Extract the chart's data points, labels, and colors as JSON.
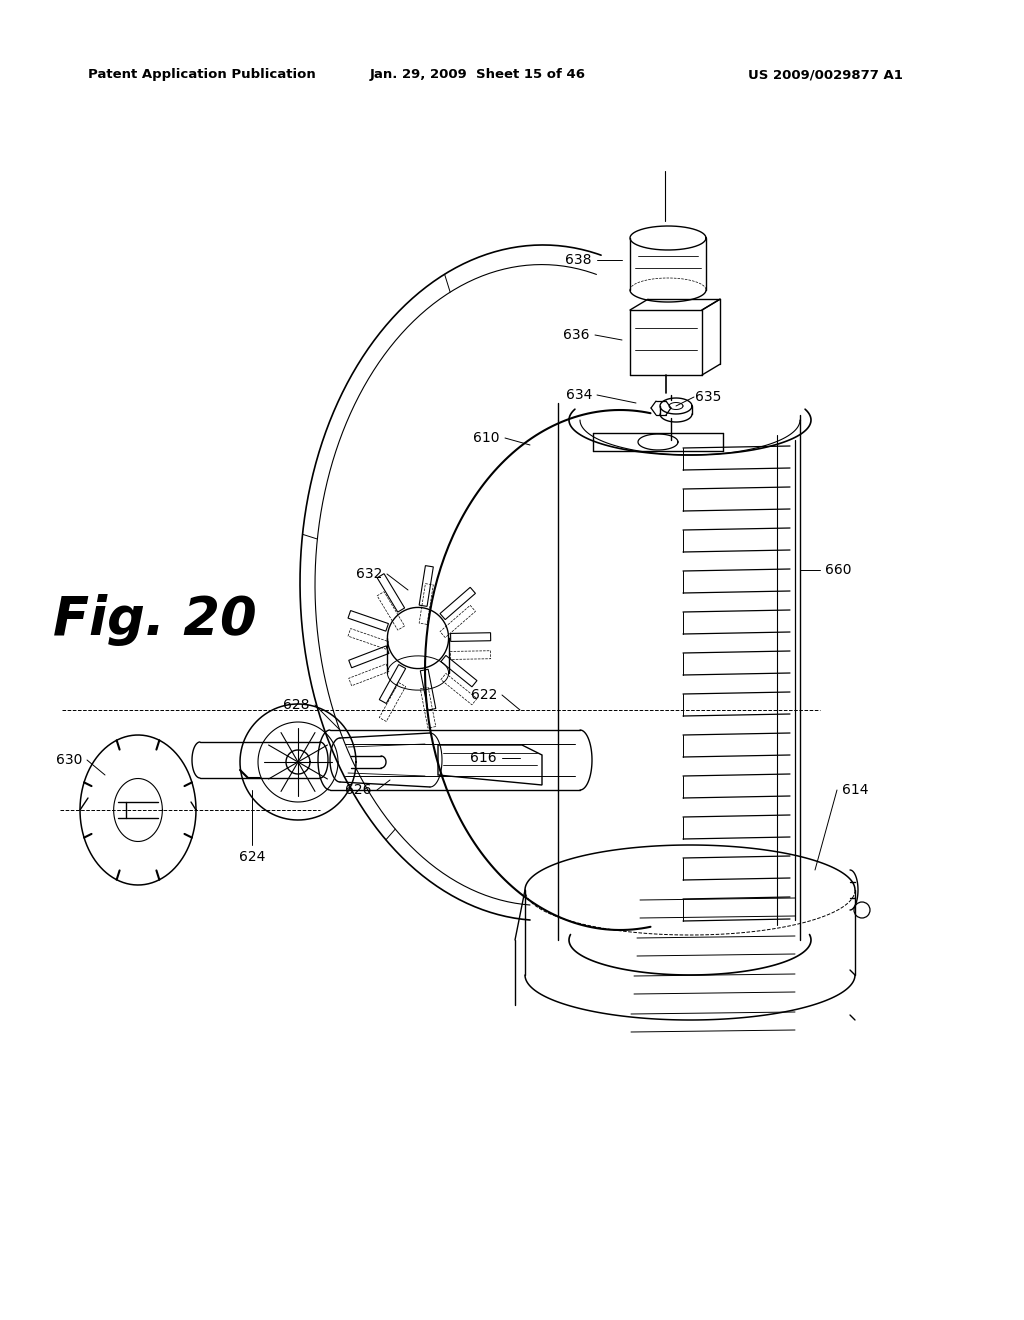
{
  "bg_color": "#ffffff",
  "header_text": "Patent Application Publication",
  "header_date": "Jan. 29, 2009  Sheet 15 of 46",
  "header_patent": "US 2009/0029877 A1",
  "fig_label": "Fig. 20",
  "line_color": "#000000",
  "lw": 1.0
}
